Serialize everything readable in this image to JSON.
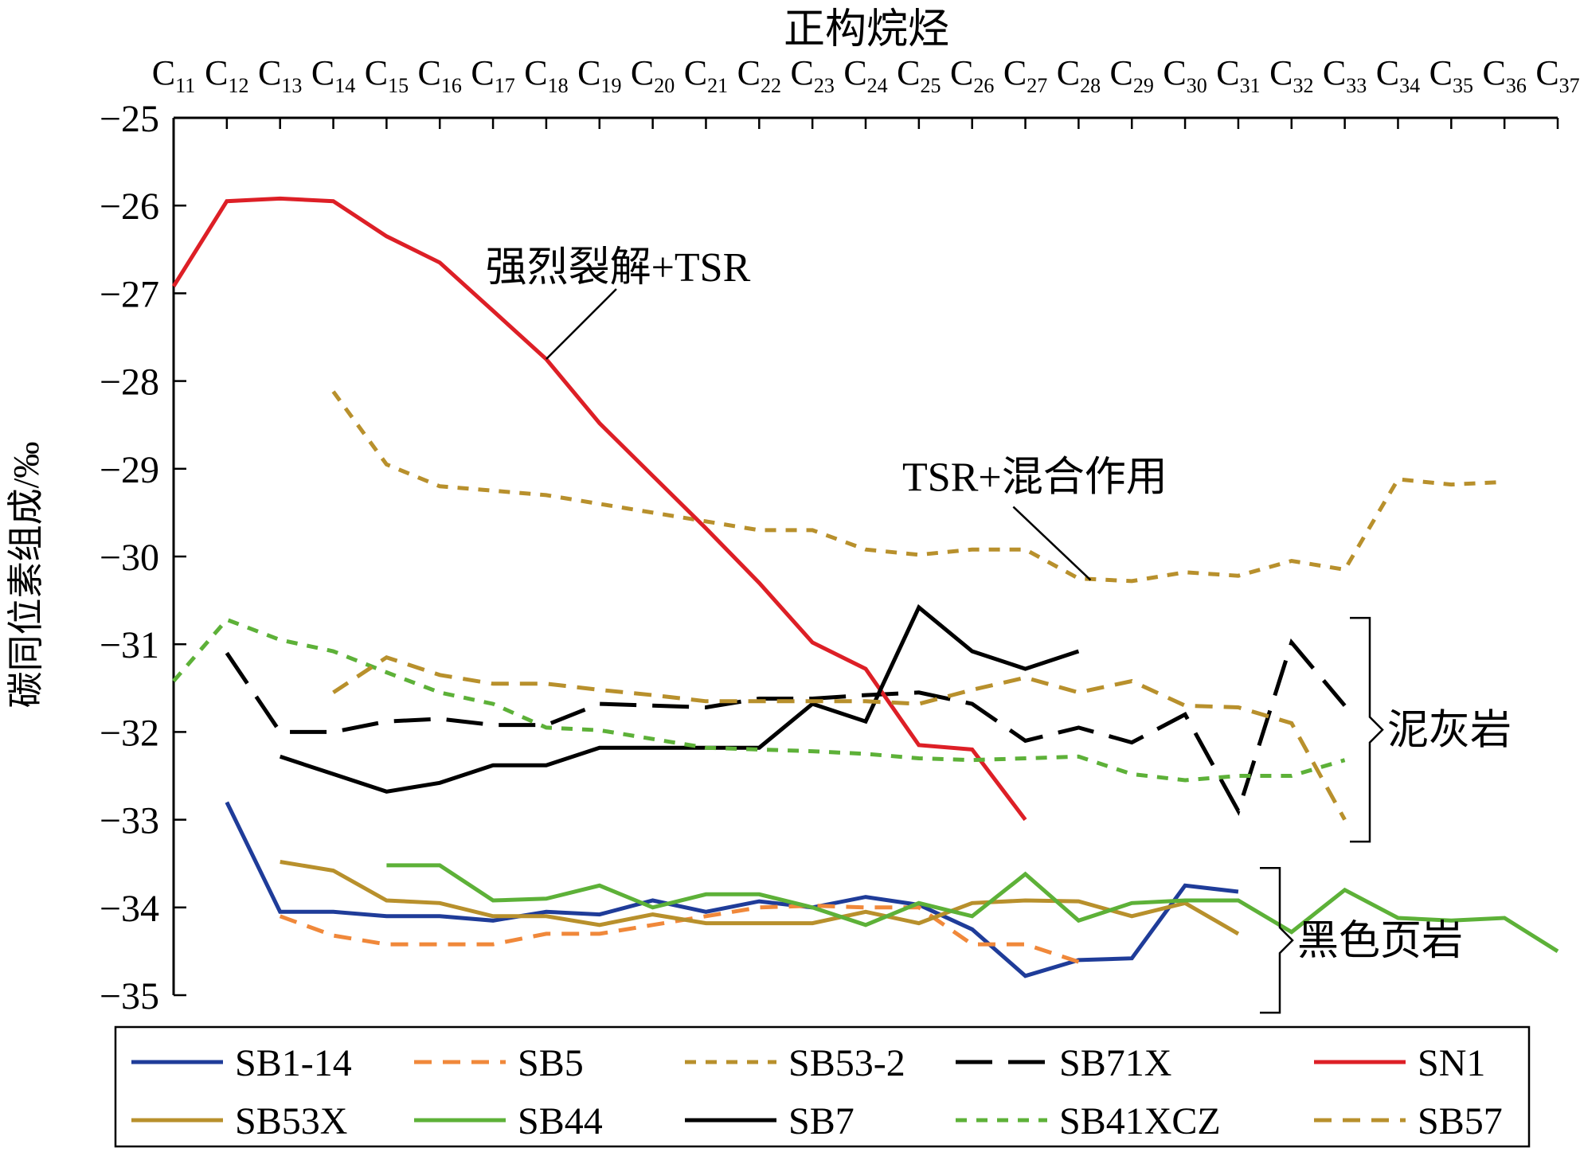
{
  "chart_data": {
    "type": "line",
    "title": "正构烷烃",
    "ylabel": "碳同位素组成/‰",
    "xlabel": "",
    "categories": [
      "C11",
      "C12",
      "C13",
      "C14",
      "C15",
      "C16",
      "C17",
      "C18",
      "C19",
      "C20",
      "C21",
      "C22",
      "C23",
      "C24",
      "C25",
      "C26",
      "C27",
      "C28",
      "C29",
      "C30",
      "C31",
      "C32",
      "C33",
      "C34",
      "C35",
      "C36",
      "C37"
    ],
    "tick_labels": [
      {
        "main": "C",
        "sub": "11"
      },
      {
        "main": "C",
        "sub": "12"
      },
      {
        "main": "C",
        "sub": "13"
      },
      {
        "main": "C",
        "sub": "14"
      },
      {
        "main": "C",
        "sub": "15"
      },
      {
        "main": "C",
        "sub": "16"
      },
      {
        "main": "C",
        "sub": "17"
      },
      {
        "main": "C",
        "sub": "18"
      },
      {
        "main": "C",
        "sub": "19"
      },
      {
        "main": "C",
        "sub": "20"
      },
      {
        "main": "C",
        "sub": "21"
      },
      {
        "main": "C",
        "sub": "22"
      },
      {
        "main": "C",
        "sub": "23"
      },
      {
        "main": "C",
        "sub": "24"
      },
      {
        "main": "C",
        "sub": "25"
      },
      {
        "main": "C",
        "sub": "26"
      },
      {
        "main": "C",
        "sub": "27"
      },
      {
        "main": "C",
        "sub": "28"
      },
      {
        "main": "C",
        "sub": "29"
      },
      {
        "main": "C",
        "sub": "30"
      },
      {
        "main": "C",
        "sub": "31"
      },
      {
        "main": "C",
        "sub": "32"
      },
      {
        "main": "C",
        "sub": "33"
      },
      {
        "main": "C",
        "sub": "34"
      },
      {
        "main": "C",
        "sub": "35"
      },
      {
        "main": "C",
        "sub": "36"
      },
      {
        "main": "C",
        "sub": "37"
      }
    ],
    "ylim": [
      -35,
      -25
    ],
    "y_ticks": [
      -25,
      -26,
      -27,
      -28,
      -29,
      -30,
      -31,
      -32,
      -33,
      -34,
      -35
    ],
    "y_tick_labels": [
      "−25",
      "−26",
      "−27",
      "−28",
      "−29",
      "−30",
      "−31",
      "−32",
      "−33",
      "−34",
      "−35"
    ],
    "grid": false,
    "legend_position": "bottom",
    "series": [
      {
        "name": "SB1-14",
        "color": "#1f3c99",
        "dash": "solid",
        "values": [
          null,
          -32.8,
          -34.05,
          -34.05,
          -34.1,
          -34.1,
          -34.15,
          -34.05,
          -34.08,
          -33.92,
          -34.05,
          -33.93,
          -34.0,
          -33.88,
          -33.97,
          -34.25,
          -34.78,
          -34.6,
          -34.58,
          -33.75,
          -33.82,
          null,
          null,
          null,
          null,
          null,
          null
        ]
      },
      {
        "name": "SB5",
        "color": "#f0883a",
        "dash": "dash",
        "values": [
          null,
          null,
          -34.1,
          -34.32,
          -34.42,
          -34.42,
          -34.42,
          -34.3,
          -34.3,
          -34.2,
          -34.1,
          -34.0,
          -33.98,
          -34.0,
          -34.0,
          -34.42,
          -34.42,
          -34.62,
          null,
          null,
          null,
          null,
          null,
          null,
          null,
          null,
          null
        ]
      },
      {
        "name": "SB53-2",
        "color": "#b8902c",
        "dash": "shortdash",
        "values": [
          null,
          null,
          null,
          -28.12,
          -28.95,
          -29.2,
          -29.25,
          -29.3,
          -29.4,
          -29.5,
          -29.6,
          -29.7,
          -29.7,
          -29.92,
          -29.98,
          -29.92,
          -29.92,
          -30.25,
          -30.28,
          -30.18,
          -30.22,
          -30.05,
          -30.15,
          -29.12,
          -29.18,
          -29.15,
          null
        ]
      },
      {
        "name": "SB71X",
        "color": "#000000",
        "dash": "longdash",
        "values": [
          null,
          -31.1,
          -32.0,
          -32.0,
          -31.88,
          -31.85,
          -31.92,
          -31.92,
          -31.68,
          -31.7,
          -31.72,
          -31.62,
          -31.62,
          -31.58,
          -31.55,
          -31.68,
          -32.1,
          -31.95,
          -32.12,
          -31.8,
          -32.9,
          -30.98,
          -31.7,
          null,
          null,
          null,
          null
        ]
      },
      {
        "name": "SN1",
        "color": "#dd1f26",
        "dash": "solid",
        "values": [
          -26.92,
          -25.95,
          -25.92,
          -25.95,
          -26.35,
          -26.65,
          -27.2,
          -27.75,
          -28.48,
          -29.08,
          -29.68,
          -30.3,
          -30.98,
          -31.28,
          -32.15,
          -32.2,
          -33.0,
          null,
          null,
          null,
          null,
          null,
          null,
          null,
          null,
          null,
          null
        ]
      },
      {
        "name": "SB53X",
        "color": "#b8902c",
        "dash": "solid",
        "values": [
          null,
          null,
          -33.48,
          -33.58,
          -33.92,
          -33.95,
          -34.1,
          -34.1,
          -34.2,
          -34.08,
          -34.18,
          -34.18,
          -34.18,
          -34.05,
          -34.18,
          -33.95,
          -33.92,
          -33.93,
          -34.1,
          -33.95,
          -34.3,
          null,
          null,
          null,
          null,
          null,
          null
        ]
      },
      {
        "name": "SB44",
        "color": "#5db138",
        "dash": "solid",
        "values": [
          null,
          null,
          null,
          null,
          -33.52,
          -33.52,
          -33.92,
          -33.9,
          -33.75,
          -34.0,
          -33.85,
          -33.85,
          -34.0,
          -34.2,
          -33.95,
          -34.1,
          -33.62,
          -34.15,
          -33.95,
          -33.92,
          -33.92,
          -34.28,
          -33.8,
          -34.12,
          -34.15,
          -34.12,
          -34.5
        ]
      },
      {
        "name": "SB7",
        "color": "#000000",
        "dash": "solid",
        "values": [
          null,
          null,
          -32.28,
          -32.48,
          -32.68,
          -32.58,
          -32.38,
          -32.38,
          -32.18,
          -32.18,
          -32.18,
          -32.18,
          -31.68,
          -31.88,
          -30.58,
          -31.08,
          -31.28,
          -31.08,
          null,
          null,
          null,
          null,
          null,
          null,
          null,
          null,
          null
        ]
      },
      {
        "name": "SB41XCZ",
        "color": "#5db138",
        "dash": "shortdash",
        "values": [
          -31.42,
          -30.72,
          -30.95,
          -31.08,
          -31.32,
          -31.55,
          -31.68,
          -31.95,
          -31.98,
          -32.08,
          -32.18,
          -32.2,
          -32.22,
          -32.25,
          -32.3,
          -32.32,
          -32.3,
          -32.28,
          -32.48,
          -32.55,
          -32.5,
          -32.5,
          -32.32,
          null,
          null,
          null,
          null
        ]
      },
      {
        "name": "SB57",
        "color": "#b8902c",
        "dash": "dash",
        "values": [
          null,
          null,
          null,
          -31.55,
          -31.15,
          -31.35,
          -31.45,
          -31.45,
          -31.52,
          -31.58,
          -31.65,
          -31.65,
          -31.65,
          -31.65,
          -31.68,
          -31.52,
          -31.38,
          -31.55,
          -31.42,
          -31.7,
          -31.72,
          -31.9,
          -33.0,
          null,
          null,
          null,
          null
        ]
      }
    ],
    "annotations": [
      {
        "id": "ann-sn1",
        "text": "强烈裂解+TSR",
        "series": "SN1",
        "category": "C18",
        "value": -27.75
      },
      {
        "id": "ann-sb53-2",
        "text": "TSR+混合作用",
        "series": "SB53-2",
        "category": "C28",
        "value": -30.25
      },
      {
        "id": "ann-limestone",
        "text": "泥灰岩",
        "y_range": [
          -33.25,
          -30.7
        ]
      },
      {
        "id": "ann-shale",
        "text": "黑色页岩",
        "y_range": [
          -35.2,
          -33.55
        ]
      }
    ]
  }
}
